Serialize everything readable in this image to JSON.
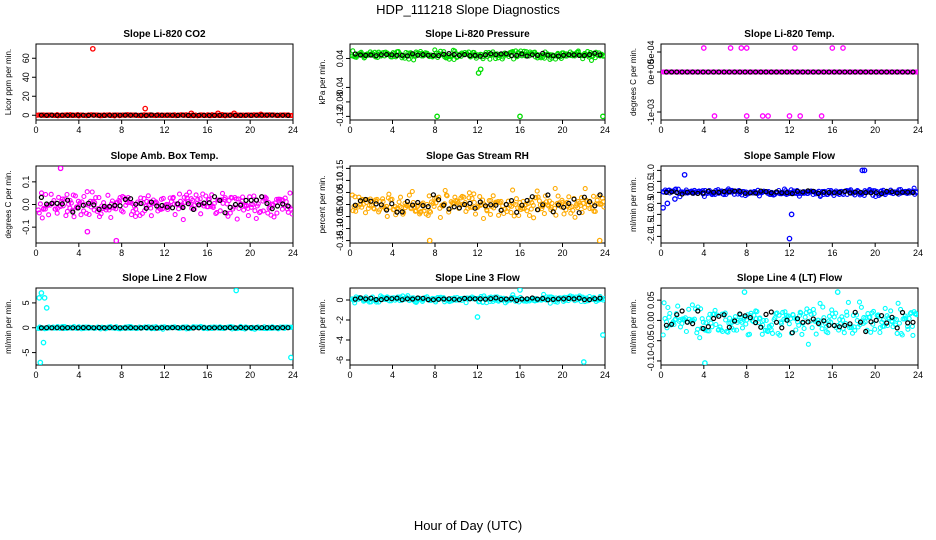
{
  "title": "HDP_111218  Slope Diagnostics",
  "xlabel": "Hour of Day (UTC)",
  "chart_data": [
    {
      "type": "scatter",
      "title": "Slope Li-820 CO2",
      "ylabel": "Licor ppm per min.",
      "xlim": [
        0,
        24
      ],
      "ylim": [
        -5,
        75
      ],
      "xticks": [
        0,
        4,
        8,
        12,
        16,
        20,
        24
      ],
      "yticks": [
        {
          "v": 0,
          "l": "0"
        },
        {
          "v": 20,
          "l": "20"
        },
        {
          "v": 40,
          "l": "40"
        },
        {
          "v": 60,
          "l": "60"
        }
      ],
      "color": "#ff0000",
      "base": 0,
      "noise": 0.5,
      "outliers": [
        [
          5.3,
          70
        ],
        [
          10.2,
          7
        ],
        [
          14.5,
          2
        ],
        [
          17,
          2
        ],
        [
          18.5,
          2
        ],
        [
          21,
          1
        ]
      ],
      "black_noise": 0.2
    },
    {
      "type": "scatter",
      "title": "Slope Li-820 Pressure",
      "ylabel": "kPa per min.",
      "xlim": [
        0,
        24
      ],
      "ylim": [
        -0.13,
        0.08
      ],
      "xticks": [
        0,
        4,
        8,
        12,
        16,
        20,
        24
      ],
      "yticks": [
        {
          "v": 0.04,
          "l": "0.04"
        },
        {
          "v": -0.04,
          "l": "-0.04"
        },
        {
          "v": -0.08,
          "l": "-0.08"
        },
        {
          "v": -0.12,
          "l": "-0.12"
        }
      ],
      "color": "#00dd00",
      "base": 0.05,
      "noise": 0.012,
      "outliers": [
        [
          8.2,
          -0.12
        ],
        [
          16,
          -0.12
        ],
        [
          23.8,
          -0.12
        ],
        [
          12.1,
          0.0
        ],
        [
          12.3,
          0.01
        ]
      ],
      "black_noise": 0.004
    },
    {
      "type": "scatter",
      "title": "Slope Li-820 Temp.",
      "ylabel": "degrees C per min.",
      "xlim": [
        0,
        24
      ],
      "ylim": [
        -0.0012,
        0.0007
      ],
      "xticks": [
        0,
        4,
        8,
        12,
        16,
        20,
        24
      ],
      "yticks": [
        {
          "v": 0.0005,
          "l": "5e-04"
        },
        {
          "v": 0,
          "l": "0e+00"
        },
        {
          "v": -0.001,
          "l": "-1e-03"
        }
      ],
      "color": "#ff00ff",
      "base": 0,
      "noise": 0,
      "outliers": [
        [
          4,
          0.0006
        ],
        [
          6.5,
          0.0006
        ],
        [
          7.5,
          0.0006
        ],
        [
          8,
          0.0006
        ],
        [
          12.5,
          0.0006
        ],
        [
          16,
          0.0006
        ],
        [
          17,
          0.0006
        ],
        [
          5,
          -0.0011
        ],
        [
          8,
          -0.0011
        ],
        [
          9.5,
          -0.0011
        ],
        [
          10,
          -0.0011
        ],
        [
          12,
          -0.0011
        ],
        [
          13,
          -0.0011
        ],
        [
          15,
          -0.0011
        ]
      ],
      "black_noise": 0
    },
    {
      "type": "scatter",
      "title": "Slope Amb. Box Temp.",
      "ylabel": "degrees C per min.",
      "xlim": [
        0,
        24
      ],
      "ylim": [
        -0.17,
        0.17
      ],
      "xticks": [
        0,
        4,
        8,
        12,
        16,
        20,
        24
      ],
      "yticks": [
        {
          "v": 0.1,
          "l": "0.1"
        },
        {
          "v": 0,
          "l": "0.0"
        },
        {
          "v": -0.1,
          "l": "-0.1"
        }
      ],
      "color": "#ff00ff",
      "base": 0,
      "noise": 0.06,
      "outliers": [
        [
          2.3,
          0.16
        ],
        [
          7.5,
          -0.16
        ],
        [
          4.8,
          -0.12
        ]
      ],
      "black_noise": 0.04
    },
    {
      "type": "scatter",
      "title": "Slope Gas Stream RH",
      "ylabel": "percent per min.",
      "xlim": [
        0,
        24
      ],
      "ylim": [
        -0.16,
        0.16
      ],
      "xticks": [
        0,
        4,
        8,
        12,
        16,
        20,
        24
      ],
      "yticks": [
        {
          "v": 0.15,
          "l": "0.15"
        },
        {
          "v": 0.1,
          "l": "0.10"
        },
        {
          "v": 0.05,
          "l": "0.05"
        },
        {
          "v": 0,
          "l": "0.00"
        },
        {
          "v": -0.05,
          "l": "-0.05"
        },
        {
          "v": -0.1,
          "l": "-0.10"
        },
        {
          "v": -0.15,
          "l": "-0.15"
        }
      ],
      "color": "#ffaa00",
      "base": 0,
      "noise": 0.055,
      "outliers": [
        [
          7.5,
          -0.15
        ],
        [
          23.5,
          -0.15
        ]
      ],
      "black_noise": 0.04
    },
    {
      "type": "scatter",
      "title": "Slope Sample Flow",
      "ylabel": "ml/min per min.",
      "xlim": [
        0,
        24
      ],
      "ylim": [
        -2.3,
        1.2
      ],
      "xticks": [
        0,
        4,
        8,
        12,
        16,
        20,
        24
      ],
      "yticks": [
        {
          "v": 1,
          "l": "1.0"
        },
        {
          "v": 0.5,
          "l": "0.5"
        },
        {
          "v": 0,
          "l": "0.0"
        },
        {
          "v": -0.5,
          "l": "-0.5"
        },
        {
          "v": -1,
          "l": "-1.0"
        },
        {
          "v": -1.5,
          "l": "-1.5"
        },
        {
          "v": -2,
          "l": "-2.0"
        }
      ],
      "color": "#0000ff",
      "base": 0,
      "noise": 0.15,
      "outliers": [
        [
          0.2,
          -0.7
        ],
        [
          0.6,
          -0.5
        ],
        [
          1.3,
          -0.3
        ],
        [
          12,
          -2.1
        ],
        [
          12.2,
          -1.0
        ],
        [
          18.8,
          1.0
        ],
        [
          19,
          1.0
        ],
        [
          2.2,
          0.8
        ]
      ],
      "black_noise": 0.08
    },
    {
      "type": "scatter",
      "title": "Slope Line 2 Flow",
      "ylabel": "ml/min per min.",
      "xlim": [
        0,
        24
      ],
      "ylim": [
        -7.5,
        8
      ],
      "xticks": [
        0,
        4,
        8,
        12,
        16,
        20,
        24
      ],
      "yticks": [
        {
          "v": 5,
          "l": "5"
        },
        {
          "v": 0,
          "l": "0"
        },
        {
          "v": -5,
          "l": "-5"
        }
      ],
      "color": "#00ffff",
      "base": 0,
      "noise": 0.25,
      "outliers": [
        [
          0.3,
          6
        ],
        [
          0.5,
          7
        ],
        [
          0.8,
          6
        ],
        [
          0.4,
          -7
        ],
        [
          0.7,
          -3
        ],
        [
          1.0,
          4
        ],
        [
          18.7,
          7.5
        ],
        [
          23.8,
          -6
        ]
      ],
      "black_noise": 0.05
    },
    {
      "type": "scatter",
      "title": "Slope Line 3 Flow",
      "ylabel": "ml/min per min.",
      "xlim": [
        0,
        24
      ],
      "ylim": [
        -6.5,
        1.2
      ],
      "xticks": [
        0,
        4,
        8,
        12,
        16,
        20,
        24
      ],
      "yticks": [
        {
          "v": 0,
          "l": "0"
        },
        {
          "v": -2,
          "l": "-2"
        },
        {
          "v": -4,
          "l": "-4"
        },
        {
          "v": -6,
          "l": "-6"
        }
      ],
      "color": "#00ffff",
      "base": 0.1,
      "noise": 0.35,
      "outliers": [
        [
          12,
          -1.7
        ],
        [
          16,
          1.0
        ],
        [
          22,
          -6.2
        ],
        [
          23.8,
          -3.5
        ]
      ],
      "black_noise": 0.15
    },
    {
      "type": "scatter",
      "title": "Slope Line 4 (LT) Flow",
      "ylabel": "ml/min per min.",
      "xlim": [
        0,
        24
      ],
      "ylim": [
        -0.11,
        0.08
      ],
      "xticks": [
        0,
        4,
        8,
        12,
        16,
        20,
        24
      ],
      "yticks": [
        {
          "v": 0.05,
          "l": "0.05"
        },
        {
          "v": 0,
          "l": "0.00"
        },
        {
          "v": -0.05,
          "l": "-0.05"
        },
        {
          "v": -0.1,
          "l": "-0.10"
        }
      ],
      "color": "#00ffff",
      "base": 0,
      "noise": 0.04,
      "outliers": [
        [
          4.1,
          -0.105
        ],
        [
          7.8,
          0.07
        ],
        [
          16.5,
          0.07
        ]
      ],
      "black_noise": 0.03
    }
  ]
}
